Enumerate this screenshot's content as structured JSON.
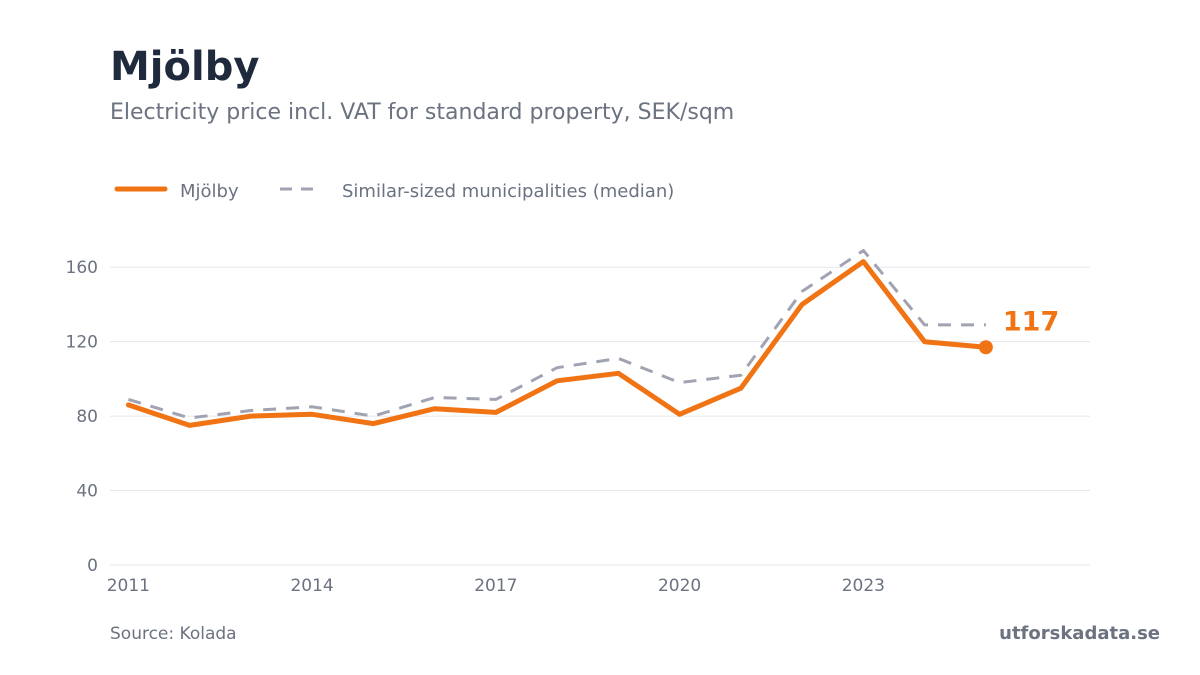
{
  "header": {
    "title": "Mjölby",
    "subtitle": "Electricity price incl. VAT for standard property, SEK/sqm"
  },
  "footer": {
    "source": "Source: Kolada",
    "brand": "utforskadata.se"
  },
  "colors": {
    "primary": "#f07314",
    "median": "#a0a3b1",
    "grid": "#e5e7eb",
    "text": "#6b7280",
    "title": "#1f2a3d"
  },
  "chart_data": {
    "type": "line",
    "title": "Mjölby",
    "subtitle": "Electricity price incl. VAT for standard property, SEK/sqm",
    "xlabel": "",
    "ylabel": "",
    "x": [
      2011,
      2012,
      2013,
      2014,
      2015,
      2016,
      2017,
      2018,
      2019,
      2020,
      2021,
      2022,
      2023,
      2024,
      2025
    ],
    "xticks": [
      2011,
      2014,
      2017,
      2020,
      2023
    ],
    "yticks": [
      0,
      40,
      80,
      120,
      160
    ],
    "ylim": [
      0,
      180
    ],
    "xlim": [
      2010.7,
      2026.7
    ],
    "grid": true,
    "legend_position": "top-left",
    "series": [
      {
        "name": "Mjölby",
        "style": "solid",
        "color": "#f07314",
        "values": [
          86,
          75,
          80,
          81,
          76,
          84,
          82,
          99,
          103,
          81,
          95,
          140,
          163,
          120,
          117
        ]
      },
      {
        "name": "Similar-sized municipalities (median)",
        "style": "dashed",
        "color": "#a0a3b1",
        "values": [
          89,
          79,
          83,
          85,
          80,
          90,
          89,
          106,
          111,
          98,
          102,
          147,
          169,
          129,
          129
        ]
      }
    ],
    "end_label": "117"
  }
}
